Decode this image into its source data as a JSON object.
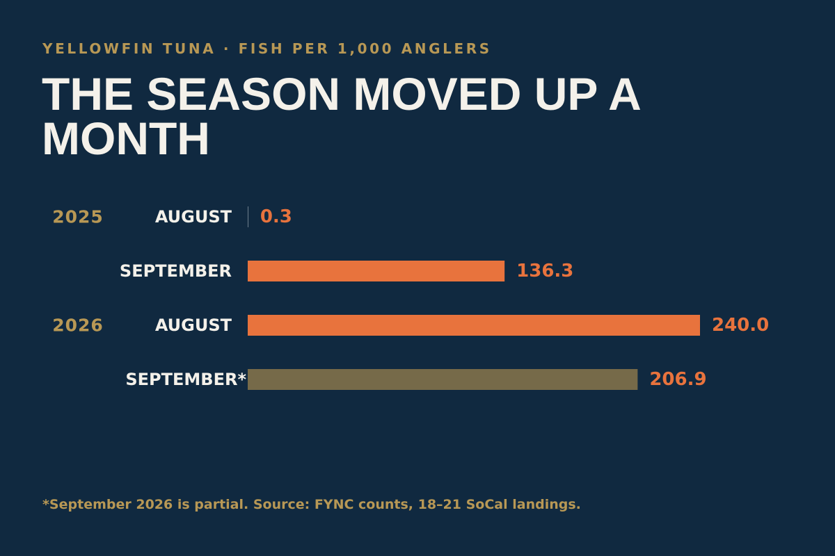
{
  "header": {
    "eyebrow": "YELLOWFIN TUNA · FISH PER 1,000 ANGLERS",
    "title": "THE SEASON MOVED UP A MONTH"
  },
  "footnote": "*September 2026 is partial. Source: FYNC counts, 18–21 SoCal landings.",
  "colors": {
    "background": "#102940",
    "complete_bar": "#e8733d",
    "partial_bar": "#766a49",
    "value_label": "#e8733d",
    "year_label": "#b89855",
    "month_label": "#f4f1ea"
  },
  "chart_data": {
    "type": "bar",
    "orientation": "horizontal",
    "value_labels": true,
    "grid": false,
    "rows": [
      {
        "year": "2025",
        "month": "AUGUST",
        "value": 0.3,
        "label": "0.3",
        "partial": false
      },
      {
        "year": "",
        "month": "SEPTEMBER",
        "value": 136.3,
        "label": "136.3",
        "partial": false
      },
      {
        "year": "2026",
        "month": "AUGUST",
        "value": 240.0,
        "label": "240.0",
        "partial": false
      },
      {
        "year": "",
        "month": "SEPTEMBER*",
        "value": 206.9,
        "label": "206.9",
        "partial": true
      }
    ]
  }
}
